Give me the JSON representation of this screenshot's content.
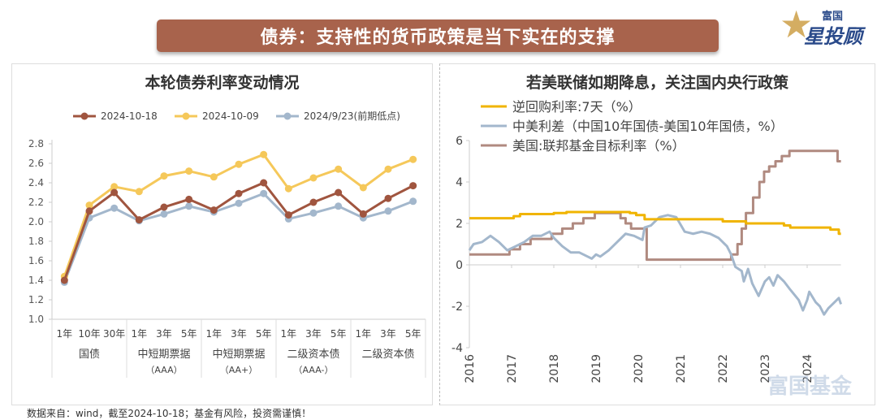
{
  "header": {
    "title": "债券：支持性的货币政策是当下实在的支撑",
    "logo_top": "富国",
    "logo_main": "星投顾"
  },
  "footer": "数据来自：wind，截至2024-10-18；基金有风险，投资需谨慎！",
  "watermark": "富国基金",
  "colors": {
    "brown": "#a0553f",
    "yellow": "#f5c85a",
    "blue": "#a3b7cc",
    "repo": "#f0b400",
    "spread": "#a3b7cc",
    "fed": "#b08a80"
  },
  "chart_data": [
    {
      "type": "line",
      "title": "本轮债券利率变动情况",
      "ylim": [
        1.0,
        2.8
      ],
      "yticks": [
        "1.0",
        "1.2",
        "1.4",
        "1.6",
        "1.8",
        "2.0",
        "2.2",
        "2.4",
        "2.6",
        "2.8"
      ],
      "grid": false,
      "legend": "top",
      "categories": [
        "1年",
        "10年",
        "30年",
        "1年",
        "3年",
        "5年",
        "1年",
        "3年",
        "5年",
        "1年",
        "3年",
        "5年",
        "1年",
        "3年",
        "5年"
      ],
      "groups": [
        {
          "label": "国债",
          "sub": ""
        },
        {
          "label": "中短期票据",
          "sub": "（AAA）"
        },
        {
          "label": "中短期票据",
          "sub": "（AA+）"
        },
        {
          "label": "二级资本债",
          "sub": "（AAA-）"
        },
        {
          "label": "二级资本债",
          "sub": ""
        }
      ],
      "series": [
        {
          "name": "2024-10-18",
          "values": [
            1.4,
            2.11,
            2.3,
            2.02,
            2.15,
            2.23,
            2.12,
            2.29,
            2.4,
            2.07,
            2.2,
            2.3,
            2.08,
            2.24,
            2.37
          ]
        },
        {
          "name": "2024-10-09",
          "values": [
            1.44,
            2.17,
            2.36,
            2.31,
            2.47,
            2.52,
            2.46,
            2.59,
            2.69,
            2.34,
            2.45,
            2.54,
            2.35,
            2.54,
            2.64
          ]
        },
        {
          "name": "2024/9/23(前期低点)",
          "values": [
            1.38,
            2.04,
            2.14,
            2.01,
            2.08,
            2.16,
            2.1,
            2.19,
            2.29,
            2.03,
            2.09,
            2.16,
            2.04,
            2.11,
            2.21
          ]
        }
      ]
    },
    {
      "type": "line",
      "title": "若美联储如期降息，关注国内央行政策",
      "ylim": [
        -4,
        6
      ],
      "yticks": [
        "-4",
        "-2",
        "0",
        "2",
        "4",
        "6"
      ],
      "xlim": [
        2016,
        2024.8
      ],
      "xticks": [
        "2016",
        "2017",
        "2018",
        "2019",
        "2020",
        "2021",
        "2022",
        "2023",
        "2024"
      ],
      "grid": false,
      "legend": "top-left",
      "series": [
        {
          "name": "逆回购利率:7天（%）",
          "step": true,
          "points": [
            [
              2016,
              2.25
            ],
            [
              2017.05,
              2.35
            ],
            [
              2017.2,
              2.45
            ],
            [
              2018.0,
              2.5
            ],
            [
              2018.3,
              2.55
            ],
            [
              2019.8,
              2.5
            ],
            [
              2019.95,
              2.4
            ],
            [
              2020.15,
              2.2
            ],
            [
              2022.0,
              2.1
            ],
            [
              2022.55,
              2.0
            ],
            [
              2023.45,
              1.9
            ],
            [
              2023.6,
              1.8
            ],
            [
              2024.55,
              1.7
            ],
            [
              2024.75,
              1.5
            ],
            [
              2024.8,
              1.5
            ]
          ]
        },
        {
          "name": "中美利差（中国10年国债-美国10年国债，%）",
          "step": false,
          "points": [
            [
              2016,
              0.7
            ],
            [
              2016.1,
              1.0
            ],
            [
              2016.3,
              1.1
            ],
            [
              2016.5,
              1.4
            ],
            [
              2016.7,
              1.1
            ],
            [
              2016.9,
              0.7
            ],
            [
              2017.1,
              0.9
            ],
            [
              2017.3,
              1.1
            ],
            [
              2017.5,
              1.4
            ],
            [
              2017.7,
              1.4
            ],
            [
              2017.9,
              1.6
            ],
            [
              2018.0,
              1.3
            ],
            [
              2018.2,
              0.9
            ],
            [
              2018.4,
              0.6
            ],
            [
              2018.6,
              0.6
            ],
            [
              2018.8,
              0.4
            ],
            [
              2018.9,
              0.3
            ],
            [
              2019.0,
              0.5
            ],
            [
              2019.1,
              0.4
            ],
            [
              2019.3,
              0.7
            ],
            [
              2019.5,
              1.1
            ],
            [
              2019.7,
              1.5
            ],
            [
              2019.9,
              1.4
            ],
            [
              2020.1,
              1.2
            ],
            [
              2020.15,
              1.8
            ],
            [
              2020.3,
              1.9
            ],
            [
              2020.5,
              2.3
            ],
            [
              2020.7,
              2.4
            ],
            [
              2020.9,
              2.3
            ],
            [
              2021.1,
              1.6
            ],
            [
              2021.3,
              1.5
            ],
            [
              2021.5,
              1.6
            ],
            [
              2021.7,
              1.5
            ],
            [
              2021.9,
              1.3
            ],
            [
              2022.1,
              0.9
            ],
            [
              2022.2,
              0.5
            ],
            [
              2022.3,
              -0.1
            ],
            [
              2022.45,
              -0.3
            ],
            [
              2022.5,
              -0.8
            ],
            [
              2022.6,
              -0.2
            ],
            [
              2022.7,
              -0.9
            ],
            [
              2022.85,
              -1.5
            ],
            [
              2023.0,
              -0.8
            ],
            [
              2023.1,
              -0.6
            ],
            [
              2023.2,
              -1.0
            ],
            [
              2023.3,
              -0.5
            ],
            [
              2023.45,
              -0.8
            ],
            [
              2023.6,
              -1.2
            ],
            [
              2023.8,
              -1.7
            ],
            [
              2023.9,
              -2.2
            ],
            [
              2024.0,
              -1.7
            ],
            [
              2024.05,
              -1.3
            ],
            [
              2024.2,
              -1.8
            ],
            [
              2024.3,
              -2.0
            ],
            [
              2024.4,
              -2.4
            ],
            [
              2024.5,
              -2.1
            ],
            [
              2024.65,
              -1.8
            ],
            [
              2024.75,
              -1.6
            ],
            [
              2024.8,
              -1.9
            ]
          ]
        },
        {
          "name": "美国:联邦基金目标利率（%）",
          "step": true,
          "points": [
            [
              2016,
              0.5
            ],
            [
              2016.95,
              0.75
            ],
            [
              2017.2,
              1.0
            ],
            [
              2017.45,
              1.25
            ],
            [
              2017.95,
              1.5
            ],
            [
              2018.2,
              1.75
            ],
            [
              2018.45,
              2.0
            ],
            [
              2018.7,
              2.25
            ],
            [
              2018.97,
              2.5
            ],
            [
              2019.58,
              2.25
            ],
            [
              2019.7,
              2.0
            ],
            [
              2019.83,
              1.75
            ],
            [
              2020.2,
              0.25
            ],
            [
              2022.2,
              0.5
            ],
            [
              2022.35,
              1.0
            ],
            [
              2022.45,
              1.75
            ],
            [
              2022.55,
              2.5
            ],
            [
              2022.72,
              3.25
            ],
            [
              2022.87,
              4.0
            ],
            [
              2022.98,
              4.5
            ],
            [
              2023.1,
              4.75
            ],
            [
              2023.25,
              5.0
            ],
            [
              2023.4,
              5.25
            ],
            [
              2023.58,
              5.5
            ],
            [
              2024.72,
              5.0
            ],
            [
              2024.8,
              5.0
            ]
          ]
        }
      ]
    }
  ]
}
